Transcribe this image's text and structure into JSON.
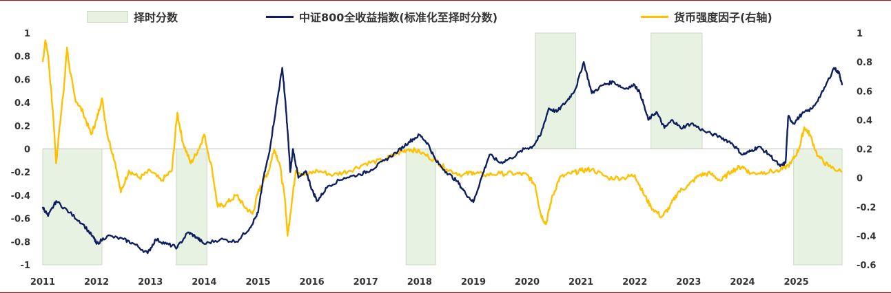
{
  "legend": {
    "timing": "择时分数",
    "index": "中证800全收益指数(标准化至择时分数)",
    "money": "货币强度因子(右轴)"
  },
  "colors": {
    "timing_fill": "#e8f2e3",
    "index_line": "#0d1f5e",
    "money_line": "#ffc000",
    "border": "#c00000"
  },
  "chart_data": {
    "type": "line",
    "x_axis": {
      "ticks": [
        "2011",
        "2012",
        "2013",
        "2014",
        "2015",
        "2016",
        "2017",
        "2018",
        "2019",
        "2020",
        "2021",
        "2022",
        "2023",
        "2024",
        "2025"
      ],
      "range": [
        2011.0,
        2025.85
      ]
    },
    "y_left": {
      "ticks": [
        "1",
        "0.8",
        "0.6",
        "0.4",
        "0.2",
        "0",
        "-0.2",
        "-0.4",
        "-0.6",
        "-0.8",
        "-1"
      ],
      "range": [
        -1,
        1
      ]
    },
    "y_right": {
      "ticks": [
        "1",
        "0.8",
        "0.6",
        "0.4",
        "0.2",
        "0",
        "-0.2",
        "-0.4",
        "-0.6"
      ],
      "range": [
        -0.6,
        1
      ]
    },
    "timing_periods": [
      {
        "start": 2011.0,
        "end": 2012.1,
        "value": -1
      },
      {
        "start": 2013.48,
        "end": 2014.05,
        "value": -1
      },
      {
        "start": 2017.75,
        "end": 2018.3,
        "value": -1
      },
      {
        "start": 2020.15,
        "end": 2020.9,
        "value": 1
      },
      {
        "start": 2022.3,
        "end": 2023.25,
        "value": 1
      },
      {
        "start": 2024.95,
        "end": 2025.85,
        "value": -1
      }
    ],
    "series": [
      {
        "name": "中证800全收益指数(标准化至择时分数)",
        "axis": "left",
        "points": [
          [
            2011.0,
            -0.5
          ],
          [
            2011.1,
            -0.58
          ],
          [
            2011.25,
            -0.45
          ],
          [
            2011.5,
            -0.55
          ],
          [
            2011.75,
            -0.65
          ],
          [
            2011.95,
            -0.77
          ],
          [
            2012.0,
            -0.82
          ],
          [
            2012.2,
            -0.75
          ],
          [
            2012.5,
            -0.78
          ],
          [
            2012.7,
            -0.82
          ],
          [
            2012.95,
            -0.9
          ],
          [
            2013.1,
            -0.78
          ],
          [
            2013.3,
            -0.82
          ],
          [
            2013.5,
            -0.85
          ],
          [
            2013.7,
            -0.72
          ],
          [
            2013.85,
            -0.76
          ],
          [
            2014.0,
            -0.82
          ],
          [
            2014.3,
            -0.78
          ],
          [
            2014.6,
            -0.8
          ],
          [
            2014.85,
            -0.68
          ],
          [
            2015.0,
            -0.55
          ],
          [
            2015.1,
            -0.25
          ],
          [
            2015.2,
            -0.05
          ],
          [
            2015.35,
            0.4
          ],
          [
            2015.45,
            0.7
          ],
          [
            2015.5,
            0.45
          ],
          [
            2015.55,
            0.15
          ],
          [
            2015.6,
            -0.2
          ],
          [
            2015.65,
            0.0
          ],
          [
            2015.75,
            -0.25
          ],
          [
            2015.9,
            -0.2
          ],
          [
            2016.0,
            -0.35
          ],
          [
            2016.1,
            -0.45
          ],
          [
            2016.3,
            -0.32
          ],
          [
            2016.6,
            -0.25
          ],
          [
            2016.9,
            -0.22
          ],
          [
            2017.1,
            -0.18
          ],
          [
            2017.35,
            -0.1
          ],
          [
            2017.6,
            -0.02
          ],
          [
            2017.8,
            0.06
          ],
          [
            2018.0,
            0.12
          ],
          [
            2018.15,
            0.05
          ],
          [
            2018.3,
            -0.1
          ],
          [
            2018.5,
            -0.2
          ],
          [
            2018.7,
            -0.28
          ],
          [
            2018.85,
            -0.38
          ],
          [
            2019.0,
            -0.46
          ],
          [
            2019.15,
            -0.25
          ],
          [
            2019.3,
            -0.05
          ],
          [
            2019.5,
            -0.12
          ],
          [
            2019.7,
            -0.08
          ],
          [
            2019.95,
            0.0
          ],
          [
            2020.1,
            0.02
          ],
          [
            2020.25,
            0.12
          ],
          [
            2020.4,
            0.35
          ],
          [
            2020.55,
            0.32
          ],
          [
            2020.75,
            0.42
          ],
          [
            2020.9,
            0.52
          ],
          [
            2021.05,
            0.75
          ],
          [
            2021.2,
            0.48
          ],
          [
            2021.4,
            0.55
          ],
          [
            2021.6,
            0.58
          ],
          [
            2021.8,
            0.52
          ],
          [
            2022.0,
            0.55
          ],
          [
            2022.1,
            0.48
          ],
          [
            2022.25,
            0.25
          ],
          [
            2022.4,
            0.32
          ],
          [
            2022.55,
            0.18
          ],
          [
            2022.7,
            0.25
          ],
          [
            2022.85,
            0.18
          ],
          [
            2023.05,
            0.22
          ],
          [
            2023.3,
            0.15
          ],
          [
            2023.6,
            0.1
          ],
          [
            2023.8,
            0.05
          ],
          [
            2024.0,
            -0.05
          ],
          [
            2024.15,
            -0.02
          ],
          [
            2024.3,
            0.02
          ],
          [
            2024.5,
            -0.05
          ],
          [
            2024.7,
            -0.15
          ],
          [
            2024.8,
            -0.12
          ],
          [
            2024.85,
            0.28
          ],
          [
            2024.95,
            0.22
          ],
          [
            2025.1,
            0.3
          ],
          [
            2025.3,
            0.35
          ],
          [
            2025.5,
            0.5
          ],
          [
            2025.7,
            0.7
          ],
          [
            2025.8,
            0.65
          ],
          [
            2025.85,
            0.55
          ]
        ]
      },
      {
        "name": "货币强度因子(右轴)",
        "axis": "right",
        "points": [
          [
            2011.0,
            0.8
          ],
          [
            2011.05,
            0.95
          ],
          [
            2011.1,
            0.85
          ],
          [
            2011.2,
            0.4
          ],
          [
            2011.25,
            0.1
          ],
          [
            2011.3,
            0.3
          ],
          [
            2011.4,
            0.65
          ],
          [
            2011.45,
            0.9
          ],
          [
            2011.5,
            0.75
          ],
          [
            2011.6,
            0.55
          ],
          [
            2011.75,
            0.45
          ],
          [
            2011.9,
            0.3
          ],
          [
            2012.0,
            0.4
          ],
          [
            2012.1,
            0.55
          ],
          [
            2012.2,
            0.3
          ],
          [
            2012.35,
            0.1
          ],
          [
            2012.45,
            -0.1
          ],
          [
            2012.6,
            0.05
          ],
          [
            2012.8,
            0.0
          ],
          [
            2013.0,
            0.05
          ],
          [
            2013.2,
            -0.02
          ],
          [
            2013.4,
            0.05
          ],
          [
            2013.5,
            0.45
          ],
          [
            2013.6,
            0.25
          ],
          [
            2013.75,
            0.1
          ],
          [
            2013.9,
            0.2
          ],
          [
            2014.0,
            0.3
          ],
          [
            2014.15,
            0.05
          ],
          [
            2014.25,
            -0.2
          ],
          [
            2014.4,
            -0.18
          ],
          [
            2014.6,
            -0.12
          ],
          [
            2014.75,
            -0.2
          ],
          [
            2014.9,
            -0.25
          ],
          [
            2015.0,
            -0.1
          ],
          [
            2015.1,
            -0.02
          ],
          [
            2015.2,
            0.05
          ],
          [
            2015.3,
            0.2
          ],
          [
            2015.4,
            0.1
          ],
          [
            2015.5,
            -0.15
          ],
          [
            2015.55,
            -0.4
          ],
          [
            2015.6,
            -0.25
          ],
          [
            2015.7,
            0.05
          ],
          [
            2015.9,
            0.02
          ],
          [
            2016.1,
            0.05
          ],
          [
            2016.4,
            0.02
          ],
          [
            2016.7,
            0.05
          ],
          [
            2017.0,
            0.1
          ],
          [
            2017.3,
            0.12
          ],
          [
            2017.6,
            0.17
          ],
          [
            2017.8,
            0.2
          ],
          [
            2018.0,
            0.18
          ],
          [
            2018.3,
            0.12
          ],
          [
            2018.5,
            0.06
          ],
          [
            2018.8,
            0.02
          ],
          [
            2019.0,
            0.04
          ],
          [
            2019.2,
            0.02
          ],
          [
            2019.5,
            0.03
          ],
          [
            2019.8,
            0.03
          ],
          [
            2020.0,
            0.02
          ],
          [
            2020.15,
            -0.05
          ],
          [
            2020.25,
            -0.25
          ],
          [
            2020.35,
            -0.32
          ],
          [
            2020.45,
            -0.15
          ],
          [
            2020.6,
            0.0
          ],
          [
            2020.8,
            0.03
          ],
          [
            2021.0,
            0.05
          ],
          [
            2021.2,
            0.06
          ],
          [
            2021.5,
            0.0
          ],
          [
            2021.8,
            0.0
          ],
          [
            2022.0,
            0.02
          ],
          [
            2022.15,
            -0.1
          ],
          [
            2022.3,
            -0.2
          ],
          [
            2022.5,
            -0.27
          ],
          [
            2022.65,
            -0.2
          ],
          [
            2022.8,
            -0.1
          ],
          [
            2023.0,
            -0.05
          ],
          [
            2023.2,
            0.02
          ],
          [
            2023.4,
            0.03
          ],
          [
            2023.6,
            -0.02
          ],
          [
            2023.8,
            0.05
          ],
          [
            2024.0,
            0.08
          ],
          [
            2024.15,
            0.03
          ],
          [
            2024.4,
            0.04
          ],
          [
            2024.7,
            0.05
          ],
          [
            2024.9,
            0.1
          ],
          [
            2025.05,
            0.2
          ],
          [
            2025.15,
            0.35
          ],
          [
            2025.25,
            0.3
          ],
          [
            2025.4,
            0.15
          ],
          [
            2025.6,
            0.08
          ],
          [
            2025.85,
            0.04
          ]
        ]
      }
    ]
  }
}
